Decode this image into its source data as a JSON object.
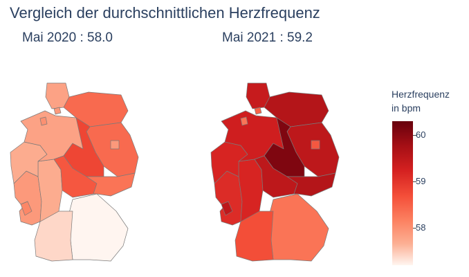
{
  "title": "Vergleich der durchschnittlichen Herzfrequenz",
  "maps": [
    {
      "subtitle": "Mai 2020 : 58.0",
      "period": "Mai 2020",
      "value": 58.0,
      "regions": {
        "SH": 57.8,
        "HH": 57.9,
        "MV": 58.4,
        "HB": 58.0,
        "NI": 57.8,
        "BE": 57.9,
        "BB": 58.4,
        "ST": 58.8,
        "NW": 57.7,
        "HE": 57.7,
        "TH": 58.6,
        "SN": 58.3,
        "RP": 57.9,
        "SL": 58.1,
        "BW": 57.4,
        "BY": 57.2
      }
    },
    {
      "subtitle": "Mai 2021 : 59.2",
      "period": "Mai 2021",
      "value": 59.2,
      "regions": {
        "SH": 59.4,
        "HH": 58.5,
        "MV": 59.6,
        "HB": 58.3,
        "NI": 59.3,
        "BE": 58.6,
        "BB": 59.5,
        "ST": 60.1,
        "NW": 59.2,
        "HE": 59.2,
        "TH": 59.5,
        "SN": 59.6,
        "RP": 59.1,
        "SL": 59.5,
        "BW": 58.7,
        "BY": 58.3
      }
    }
  ],
  "colorbar": {
    "title_line1": "Herzfrequenz",
    "title_line2": "in bpm",
    "min": 57.2,
    "max": 60.3,
    "ticks": [
      58,
      59,
      60
    ],
    "colorscale": "Reds"
  }
}
